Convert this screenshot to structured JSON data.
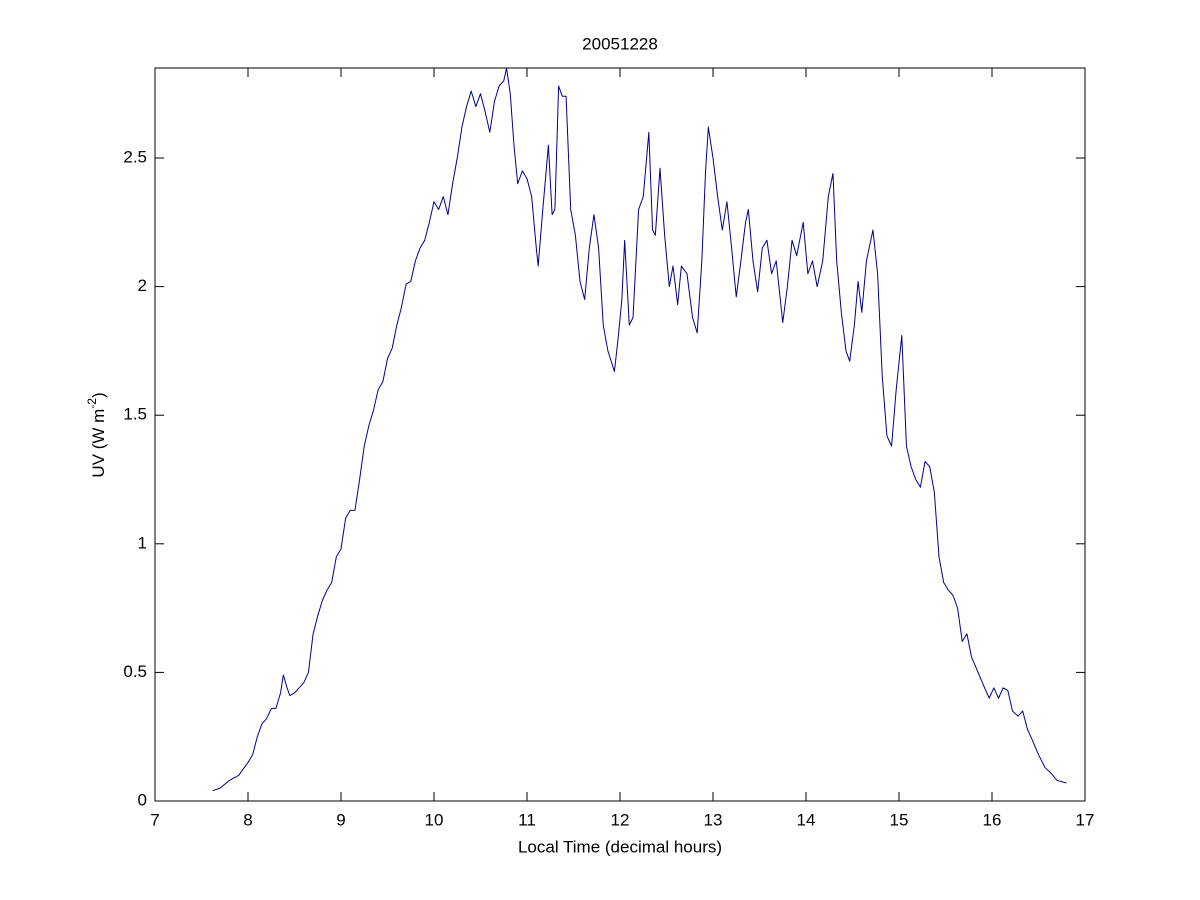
{
  "chart_data": {
    "type": "line",
    "title": "20051228",
    "x_label": "Local Time (decimal hours)",
    "y_label": {
      "text": "UV (W m",
      "superscript": "-2",
      "suffix": ")"
    },
    "xlim": [
      7,
      17
    ],
    "xticks": [
      7,
      8,
      9,
      10,
      11,
      12,
      13,
      14,
      15,
      16,
      17
    ],
    "ylim": [
      0,
      2.85
    ],
    "yticks": [
      0,
      0.5,
      1,
      1.5,
      2,
      2.5
    ],
    "grid": false,
    "box": true,
    "series": [
      {
        "color": "#00008b",
        "x": [
          7.62,
          7.7,
          7.8,
          7.9,
          8.0,
          8.05,
          8.1,
          8.15,
          8.2,
          8.25,
          8.3,
          8.35,
          8.38,
          8.42,
          8.45,
          8.5,
          8.55,
          8.6,
          8.65,
          8.7,
          8.75,
          8.8,
          8.85,
          8.9,
          8.95,
          9.0,
          9.05,
          9.1,
          9.15,
          9.2,
          9.25,
          9.3,
          9.35,
          9.4,
          9.45,
          9.5,
          9.55,
          9.6,
          9.65,
          9.7,
          9.75,
          9.8,
          9.85,
          9.9,
          9.95,
          10.0,
          10.05,
          10.1,
          10.15,
          10.2,
          10.25,
          10.3,
          10.35,
          10.4,
          10.45,
          10.5,
          10.55,
          10.6,
          10.65,
          10.7,
          10.75,
          10.78,
          10.82,
          10.86,
          10.9,
          10.95,
          11.0,
          11.05,
          11.1,
          11.12,
          11.17,
          11.23,
          11.27,
          11.3,
          11.34,
          11.38,
          11.42,
          11.47,
          11.52,
          11.57,
          11.62,
          11.67,
          11.72,
          11.77,
          11.82,
          11.87,
          11.94,
          11.98,
          12.02,
          12.05,
          12.1,
          12.14,
          12.2,
          12.25,
          12.31,
          12.35,
          12.38,
          12.43,
          12.48,
          12.53,
          12.57,
          12.62,
          12.66,
          12.72,
          12.78,
          12.83,
          12.88,
          12.92,
          12.95,
          13.0,
          13.05,
          13.1,
          13.15,
          13.2,
          13.25,
          13.3,
          13.35,
          13.38,
          13.43,
          13.48,
          13.53,
          13.58,
          13.63,
          13.68,
          13.75,
          13.8,
          13.85,
          13.9,
          13.97,
          14.02,
          14.07,
          14.12,
          14.18,
          14.24,
          14.29,
          14.33,
          14.38,
          14.43,
          14.47,
          14.52,
          14.56,
          14.6,
          14.65,
          14.72,
          14.77,
          14.82,
          14.87,
          14.92,
          14.97,
          15.03,
          15.08,
          15.13,
          15.18,
          15.23,
          15.28,
          15.33,
          15.38,
          15.43,
          15.48,
          15.53,
          15.58,
          15.63,
          15.68,
          15.73,
          15.78,
          15.85,
          15.92,
          15.97,
          16.02,
          16.07,
          16.12,
          16.17,
          16.22,
          16.28,
          16.33,
          16.38,
          16.43,
          16.5,
          16.57,
          16.63,
          16.7,
          16.8
        ],
        "values": [
          0.04,
          0.05,
          0.08,
          0.1,
          0.15,
          0.18,
          0.25,
          0.3,
          0.32,
          0.36,
          0.36,
          0.42,
          0.49,
          0.44,
          0.41,
          0.42,
          0.44,
          0.46,
          0.5,
          0.65,
          0.72,
          0.78,
          0.82,
          0.85,
          0.95,
          0.98,
          1.1,
          1.13,
          1.13,
          1.25,
          1.38,
          1.46,
          1.52,
          1.6,
          1.63,
          1.72,
          1.76,
          1.85,
          1.92,
          2.01,
          2.02,
          2.1,
          2.15,
          2.18,
          2.25,
          2.33,
          2.3,
          2.35,
          2.28,
          2.4,
          2.5,
          2.62,
          2.7,
          2.76,
          2.7,
          2.75,
          2.68,
          2.6,
          2.72,
          2.78,
          2.8,
          2.85,
          2.75,
          2.55,
          2.4,
          2.45,
          2.42,
          2.35,
          2.15,
          2.08,
          2.3,
          2.55,
          2.28,
          2.3,
          2.78,
          2.74,
          2.74,
          2.3,
          2.2,
          2.02,
          1.95,
          2.15,
          2.28,
          2.15,
          1.85,
          1.75,
          1.67,
          1.8,
          1.95,
          2.18,
          1.85,
          1.88,
          2.3,
          2.35,
          2.6,
          2.22,
          2.2,
          2.46,
          2.2,
          2.0,
          2.08,
          1.93,
          2.08,
          2.05,
          1.88,
          1.82,
          2.1,
          2.45,
          2.62,
          2.5,
          2.35,
          2.22,
          2.33,
          2.15,
          1.96,
          2.1,
          2.25,
          2.3,
          2.1,
          1.98,
          2.15,
          2.18,
          2.05,
          2.1,
          1.86,
          2.0,
          2.18,
          2.12,
          2.25,
          2.05,
          2.1,
          2.0,
          2.1,
          2.35,
          2.44,
          2.1,
          1.9,
          1.75,
          1.71,
          1.85,
          2.02,
          1.9,
          2.1,
          2.22,
          2.05,
          1.65,
          1.42,
          1.38,
          1.6,
          1.81,
          1.38,
          1.3,
          1.25,
          1.22,
          1.32,
          1.3,
          1.2,
          0.95,
          0.85,
          0.82,
          0.8,
          0.75,
          0.62,
          0.65,
          0.56,
          0.5,
          0.44,
          0.4,
          0.44,
          0.4,
          0.44,
          0.43,
          0.35,
          0.33,
          0.35,
          0.28,
          0.24,
          0.18,
          0.13,
          0.11,
          0.08,
          0.07
        ]
      }
    ]
  }
}
